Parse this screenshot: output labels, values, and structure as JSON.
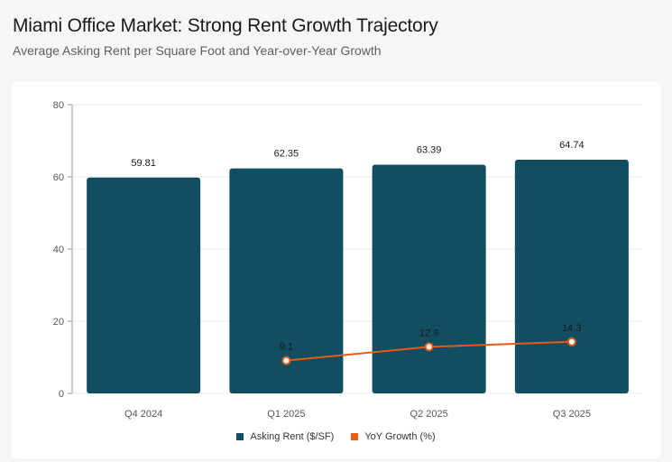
{
  "header": {
    "title": "Miami Office Market: Strong Rent Growth Trajectory",
    "subtitle": "Average Asking Rent per Square Foot and Year-over-Year Growth"
  },
  "colors": {
    "bar": "#114e61",
    "line": "#e8591a",
    "grid": "#ececec",
    "axis": "#9a9a9a"
  },
  "legend": {
    "bar_label": "Asking Rent ($/SF)",
    "line_label": "YoY Growth (%)"
  },
  "chart_data": {
    "type": "bar",
    "title": "Miami Office Market: Strong Rent Growth Trajectory",
    "subtitle": "Average Asking Rent per Square Foot and Year-over-Year Growth",
    "categories": [
      "Q4 2024",
      "Q1 2025",
      "Q2 2025",
      "Q3 2025"
    ],
    "series": [
      {
        "name": "Asking Rent ($/SF)",
        "type": "bar",
        "values": [
          59.81,
          62.35,
          63.39,
          64.74
        ],
        "labels": [
          "59.81",
          "62.35",
          "63.39",
          "64.74"
        ]
      },
      {
        "name": "YoY Growth (%)",
        "type": "line",
        "values": [
          null,
          9.1,
          12.9,
          14.3
        ],
        "labels": [
          "",
          "9.1",
          "12.9",
          "14.3"
        ]
      }
    ],
    "ylim": [
      0,
      80
    ],
    "yticks": [
      0,
      20,
      40,
      60,
      80
    ],
    "xlabel": "",
    "ylabel": "",
    "grid": true,
    "legend_position": "bottom-center"
  }
}
